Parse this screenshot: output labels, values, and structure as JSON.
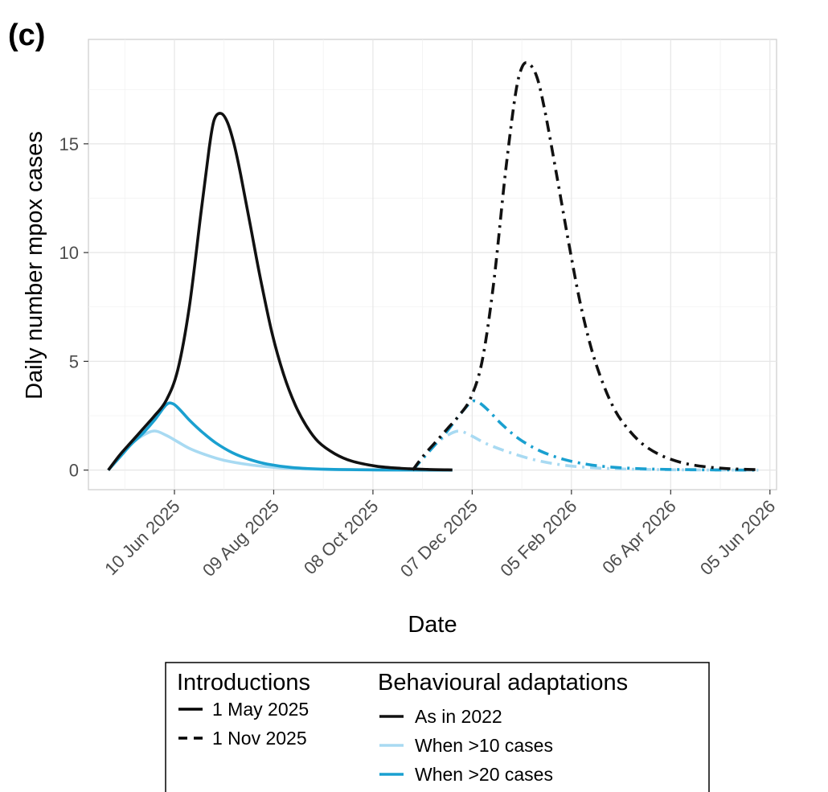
{
  "panel_label": "(c)",
  "chart_data": {
    "type": "line",
    "xlabel": "Date",
    "ylabel": "Daily number mpox cases",
    "x_ticks": [
      "2025-06-10",
      "2025-08-09",
      "2025-10-08",
      "2025-12-07",
      "2026-02-05",
      "2026-04-06",
      "2026-06-05"
    ],
    "x_tick_labels": [
      "10 Jun 2025",
      "09 Aug 2025",
      "08 Oct 2025",
      "07 Dec 2025",
      "05 Feb 2026",
      "06 Apr 2026",
      "05 Jun 2026"
    ],
    "y_ticks": [
      0,
      5,
      10,
      15
    ],
    "xlim": [
      "2025-04-19",
      "2026-06-09"
    ],
    "ylim": [
      -0.9,
      19.8
    ],
    "grid": true,
    "colors": {
      "As in 2022": "#111111",
      "When >10 cases": "#a8daf2",
      "When >20 cases": "#1aa0d0"
    },
    "series": [
      {
        "name": "1 May 2025 / As in 2022",
        "introduction": "1 May 2025",
        "adaptation": "As in 2022",
        "linestyle": "solid",
        "x": [
          "2025-05-01",
          "2025-05-08",
          "2025-05-15",
          "2025-05-22",
          "2025-05-29",
          "2025-06-05",
          "2025-06-12",
          "2025-06-19",
          "2025-06-26",
          "2025-07-01",
          "2025-07-04",
          "2025-07-08",
          "2025-07-12",
          "2025-07-16",
          "2025-07-20",
          "2025-07-26",
          "2025-08-01",
          "2025-08-08",
          "2025-08-15",
          "2025-08-22",
          "2025-08-29",
          "2025-09-05",
          "2025-09-15",
          "2025-09-25",
          "2025-10-10",
          "2025-10-25",
          "2025-11-10",
          "2025-11-25"
        ],
        "y": [
          0,
          0.7,
          1.3,
          1.9,
          2.5,
          3.2,
          4.6,
          7.5,
          11.8,
          14.8,
          16.1,
          16.4,
          16.0,
          15.0,
          13.6,
          11.2,
          8.8,
          6.3,
          4.4,
          3.0,
          2.0,
          1.3,
          0.75,
          0.42,
          0.18,
          0.08,
          0.03,
          0.01
        ]
      },
      {
        "name": "1 May 2025 / When >10 cases",
        "introduction": "1 May 2025",
        "adaptation": "When >10 cases",
        "linestyle": "solid",
        "x": [
          "2025-05-01",
          "2025-05-08",
          "2025-05-15",
          "2025-05-22",
          "2025-05-29",
          "2025-06-05",
          "2025-06-12",
          "2025-06-19",
          "2025-06-29",
          "2025-07-10",
          "2025-07-25",
          "2025-08-10",
          "2025-08-25",
          "2025-09-15",
          "2025-10-15",
          "2025-11-25"
        ],
        "y": [
          0,
          0.6,
          1.2,
          1.6,
          1.8,
          1.6,
          1.3,
          1.0,
          0.7,
          0.45,
          0.25,
          0.12,
          0.06,
          0.02,
          0.01,
          0
        ]
      },
      {
        "name": "1 May 2025 / When >20 cases",
        "introduction": "1 May 2025",
        "adaptation": "When >20 cases",
        "linestyle": "solid",
        "x": [
          "2025-05-01",
          "2025-05-08",
          "2025-05-15",
          "2025-05-22",
          "2025-05-29",
          "2025-06-05",
          "2025-06-09",
          "2025-06-13",
          "2025-06-19",
          "2025-06-26",
          "2025-07-05",
          "2025-07-15",
          "2025-07-25",
          "2025-08-05",
          "2025-08-20",
          "2025-09-10",
          "2025-10-10",
          "2025-11-25"
        ],
        "y": [
          0,
          0.6,
          1.2,
          1.7,
          2.3,
          3.0,
          3.05,
          2.8,
          2.3,
          1.8,
          1.25,
          0.8,
          0.5,
          0.28,
          0.12,
          0.04,
          0.01,
          0
        ]
      },
      {
        "name": "1 Nov 2025 / As in 2022",
        "introduction": "1 Nov 2025",
        "adaptation": "As in 2022",
        "linestyle": "dashed",
        "x": [
          "2025-11-01",
          "2025-11-08",
          "2025-11-15",
          "2025-11-22",
          "2025-11-29",
          "2025-12-06",
          "2025-12-13",
          "2025-12-20",
          "2025-12-27",
          "2026-01-02",
          "2026-01-06",
          "2026-01-10",
          "2026-01-15",
          "2026-01-20",
          "2026-01-27",
          "2026-02-03",
          "2026-02-10",
          "2026-02-17",
          "2026-02-24",
          "2026-03-03",
          "2026-03-10",
          "2026-03-20",
          "2026-04-01",
          "2026-04-15",
          "2026-05-01",
          "2026-05-15",
          "2026-05-29"
        ],
        "y": [
          0,
          0.7,
          1.3,
          1.9,
          2.5,
          3.3,
          5.0,
          8.6,
          13.6,
          17.2,
          18.5,
          18.7,
          18.1,
          16.5,
          13.6,
          10.6,
          7.8,
          5.6,
          4.0,
          2.8,
          2.0,
          1.2,
          0.65,
          0.3,
          0.12,
          0.05,
          0.02
        ]
      },
      {
        "name": "1 Nov 2025 / When >10 cases",
        "introduction": "1 Nov 2025",
        "adaptation": "When >10 cases",
        "linestyle": "dashed",
        "x": [
          "2025-11-01",
          "2025-11-08",
          "2025-11-15",
          "2025-11-22",
          "2025-11-29",
          "2025-12-06",
          "2025-12-16",
          "2025-12-30",
          "2026-01-15",
          "2026-02-01",
          "2026-02-20",
          "2026-03-15",
          "2026-04-15",
          "2026-05-29"
        ],
        "y": [
          0,
          0.6,
          1.2,
          1.6,
          1.8,
          1.6,
          1.2,
          0.8,
          0.45,
          0.22,
          0.1,
          0.04,
          0.01,
          0
        ]
      },
      {
        "name": "1 Nov 2025 / When >20 cases",
        "introduction": "1 Nov 2025",
        "adaptation": "When >20 cases",
        "linestyle": "dashed",
        "x": [
          "2025-11-01",
          "2025-11-08",
          "2025-11-15",
          "2025-11-22",
          "2025-11-29",
          "2025-12-06",
          "2025-12-10",
          "2025-12-16",
          "2025-12-25",
          "2026-01-05",
          "2026-01-18",
          "2026-02-01",
          "2026-02-15",
          "2026-03-01",
          "2026-03-20",
          "2026-04-15",
          "2026-05-29"
        ],
        "y": [
          0,
          0.6,
          1.2,
          1.8,
          2.5,
          3.1,
          3.15,
          2.8,
          2.1,
          1.4,
          0.85,
          0.48,
          0.26,
          0.14,
          0.06,
          0.02,
          0
        ]
      }
    ]
  },
  "legend": {
    "introductions_title": "Introductions",
    "introductions": [
      {
        "label": "1 May 2025",
        "linestyle": "solid"
      },
      {
        "label": "1 Nov 2025",
        "linestyle": "dashed"
      }
    ],
    "adaptations_title": "Behavioural adaptations",
    "adaptations": [
      {
        "label": "As in 2022",
        "color": "#111111"
      },
      {
        "label": "When >10 cases",
        "color": "#a8daf2"
      },
      {
        "label": "When >20 cases",
        "color": "#1aa0d0"
      }
    ]
  }
}
